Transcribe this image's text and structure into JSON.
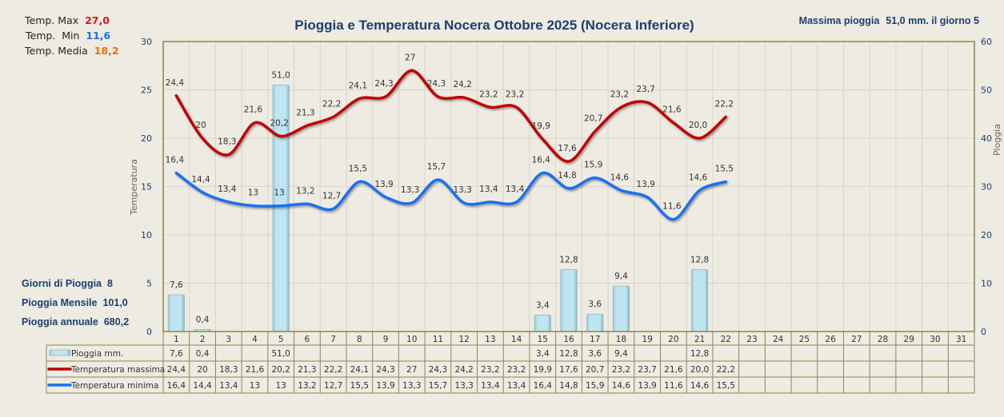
{
  "header": {
    "title": "Pioggia e Temperatura Nocera Ottobre 2025 (Nocera Inferiore)",
    "max_rain_label": "Massima pioggia",
    "max_rain_value": "51,0 mm. il giorno 5"
  },
  "temp_stats": {
    "max_label": "Temp. Max",
    "max_value": "27,0",
    "max_color": "#e8101a",
    "min_label": "Temp.  Min",
    "min_value": "11,6",
    "min_color": "#1a6fe8",
    "avg_label": "Temp. Media",
    "avg_value": "18,2",
    "avg_color": "#e07010"
  },
  "rain_stats": {
    "days_label": "Giorni di Pioggia",
    "days_value": "8",
    "monthly_label": "Pioggia Mensile",
    "monthly_value": "101,0",
    "annual_label": "Pioggia annuale",
    "annual_value": "680,2"
  },
  "colors": {
    "tmax": "#c00000",
    "tmin": "#1a6ff0",
    "rain_fill": "#bfe6f0",
    "rain_stroke": "#8fb8c8",
    "grid": "#d8d4cc",
    "frame": "#8b8552"
  },
  "chart_data": {
    "type": "bar+line",
    "title": "Pioggia e Temperatura Nocera Ottobre 2025 (Nocera Inferiore)",
    "xlabel": "",
    "ylabel": "Temperatura",
    "y2label": "Pioggia",
    "ylim": [
      0,
      30
    ],
    "y2lim": [
      0,
      60
    ],
    "yticks": [
      "0",
      "5",
      "10",
      "15",
      "20",
      "25",
      "30"
    ],
    "y2ticks": [
      "0",
      "10",
      "20",
      "30",
      "40",
      "50",
      "60"
    ],
    "grid": true,
    "categories": [
      "1",
      "2",
      "3",
      "4",
      "5",
      "6",
      "7",
      "8",
      "9",
      "10",
      "11",
      "12",
      "13",
      "14",
      "15",
      "16",
      "17",
      "18",
      "19",
      "20",
      "21",
      "22",
      "23",
      "24",
      "25",
      "26",
      "27",
      "28",
      "29",
      "30",
      "31"
    ],
    "series": [
      {
        "name": "Pioggia mm.",
        "type": "bar",
        "axis": "right",
        "values": [
          7.6,
          0.4,
          null,
          null,
          51.0,
          null,
          null,
          null,
          null,
          null,
          null,
          null,
          null,
          null,
          3.4,
          12.8,
          3.6,
          9.4,
          null,
          null,
          12.8,
          null,
          null,
          null,
          null,
          null,
          null,
          null,
          null,
          null,
          null
        ],
        "labels": [
          "7,6",
          "0,4",
          "",
          "",
          "51,0",
          "",
          "",
          "",
          "",
          "",
          "",
          "",
          "",
          "",
          "3,4",
          "12,8",
          "3,6",
          "9,4",
          "",
          "",
          "12,8",
          "",
          "",
          "",
          "",
          "",
          "",
          "",
          "",
          "",
          ""
        ]
      },
      {
        "name": "Temperatura massima",
        "type": "line",
        "axis": "left",
        "values": [
          24.4,
          20,
          18.3,
          21.6,
          20.2,
          21.3,
          22.2,
          24.1,
          24.3,
          27,
          24.3,
          24.2,
          23.2,
          23.2,
          19.9,
          17.6,
          20.7,
          23.2,
          23.7,
          21.6,
          20.0,
          22.2,
          null,
          null,
          null,
          null,
          null,
          null,
          null,
          null,
          null
        ],
        "labels": [
          "24,4",
          "20",
          "18,3",
          "21,6",
          "20,2",
          "21,3",
          "22,2",
          "24,1",
          "24,3",
          "27",
          "24,3",
          "24,2",
          "23,2",
          "23,2",
          "19,9",
          "17,6",
          "20,7",
          "23,2",
          "23,7",
          "21,6",
          "20,0",
          "22,2",
          "",
          "",
          "",
          "",
          "",
          "",
          "",
          "",
          ""
        ]
      },
      {
        "name": "Temperatura minima",
        "type": "line",
        "axis": "left",
        "values": [
          16.4,
          14.4,
          13.4,
          13,
          13,
          13.2,
          12.7,
          15.5,
          13.9,
          13.3,
          15.7,
          13.3,
          13.4,
          13.4,
          16.4,
          14.8,
          15.9,
          14.6,
          13.9,
          11.6,
          14.6,
          15.5,
          null,
          null,
          null,
          null,
          null,
          null,
          null,
          null,
          null
        ],
        "labels": [
          "16,4",
          "14,4",
          "13,4",
          "13",
          "13",
          "13,2",
          "12,7",
          "15,5",
          "13,9",
          "13,3",
          "15,7",
          "13,3",
          "13,4",
          "13,4",
          "16,4",
          "14,8",
          "15,9",
          "14,6",
          "13,9",
          "11,6",
          "14,6",
          "15,5",
          "",
          "",
          "",
          "",
          "",
          "",
          "",
          "",
          ""
        ]
      }
    ]
  }
}
